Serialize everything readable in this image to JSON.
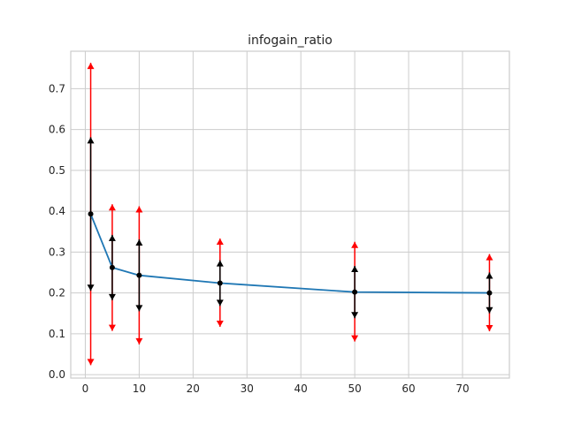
{
  "chart_data": {
    "type": "line",
    "title": "infogain_ratio",
    "xlabel": "",
    "ylabel": "",
    "xlim": [
      -2.7,
      78.7
    ],
    "ylim": [
      -0.0085,
      0.7915
    ],
    "xticks": [
      "0",
      "10",
      "20",
      "30",
      "40",
      "50",
      "60",
      "70"
    ],
    "yticks": [
      "0.0",
      "0.1",
      "0.2",
      "0.3",
      "0.4",
      "0.5",
      "0.6",
      "0.7"
    ],
    "grid": true,
    "colors": {
      "line": "#1f77b4",
      "inner_error": "#000000",
      "outer_error": "#ff0000",
      "grid": "#cccccc",
      "spine": "#cccccc"
    },
    "series": [
      {
        "x": [
          1,
          5,
          10,
          25,
          50,
          75
        ],
        "y": [
          0.393,
          0.262,
          0.243,
          0.224,
          0.202,
          0.2
        ],
        "inner_low": [
          0.205,
          0.182,
          0.155,
          0.168,
          0.138,
          0.15
        ],
        "inner_high": [
          0.581,
          0.342,
          0.331,
          0.28,
          0.266,
          0.25
        ],
        "outer_low": [
          0.023,
          0.107,
          0.074,
          0.117,
          0.081,
          0.106
        ],
        "outer_high": [
          0.763,
          0.417,
          0.412,
          0.333,
          0.325,
          0.295
        ]
      }
    ]
  }
}
